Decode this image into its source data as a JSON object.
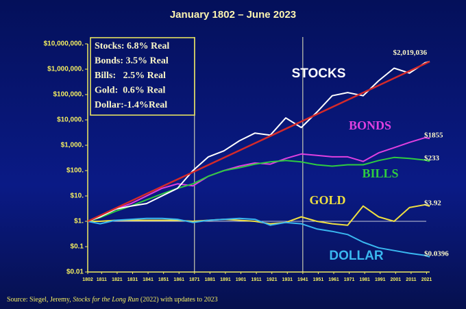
{
  "chart_data": {
    "type": "line",
    "title": "January 1802 – June 2023",
    "source": [
      "Source: Siegel, Jeremy, ",
      "Stocks for the Long Run",
      " (2022) with updates to 2023"
    ],
    "annotations": [
      "Stocks: 6.8% Real",
      "Bonds: 3.5% Real",
      "Bills:   2.5% Real",
      "Gold:  0.6% Real",
      "Dollar:-1.4%Real"
    ],
    "log_y": true,
    "x": [
      1802,
      1810,
      1820,
      1830,
      1840,
      1850,
      1860,
      1870,
      1880,
      1890,
      1900,
      1910,
      1920,
      1930,
      1940,
      1950,
      1960,
      1970,
      1980,
      1990,
      2000,
      2010,
      2020,
      2023
    ],
    "series": [
      {
        "name": "STOCKS",
        "color": "#ffffff",
        "values": [
          1,
          1.5,
          3,
          4,
          5,
          10,
          20,
          100,
          350,
          600,
          1500,
          3000,
          2500,
          12000,
          5000,
          20000,
          90000,
          120000,
          90000,
          350000,
          1100000,
          700000,
          1800000,
          2019036
        ],
        "end_label": "$2,019,036"
      },
      {
        "name": "BONDS",
        "color": "#e040e0",
        "values": [
          1,
          1.5,
          3,
          5,
          10,
          20,
          30,
          25,
          60,
          100,
          150,
          200,
          180,
          300,
          450,
          400,
          350,
          350,
          230,
          500,
          800,
          1300,
          2000,
          1855
        ],
        "end_label": "$1855"
      },
      {
        "name": "BILLS",
        "color": "#2ecc40",
        "values": [
          1,
          1.4,
          2.5,
          4,
          7,
          12,
          20,
          30,
          60,
          100,
          130,
          180,
          220,
          250,
          220,
          170,
          150,
          170,
          170,
          250,
          330,
          300,
          260,
          233
        ],
        "end_label": "$233"
      },
      {
        "name": "GOLD",
        "color": "#f0e040",
        "values": [
          1,
          1,
          1.1,
          1.1,
          1.1,
          1.1,
          1.1,
          1,
          1.1,
          1.2,
          1.1,
          1,
          0.8,
          0.9,
          1.5,
          1,
          0.8,
          0.7,
          4,
          1.5,
          1,
          3.5,
          4.5,
          3.92
        ],
        "end_label": "$3.92"
      },
      {
        "name": "DOLLAR",
        "color": "#3ab8f0",
        "values": [
          1,
          0.8,
          1.1,
          1.2,
          1.3,
          1.3,
          1.2,
          0.9,
          1.1,
          1.2,
          1.3,
          1.2,
          0.7,
          0.9,
          0.8,
          0.5,
          0.4,
          0.3,
          0.15,
          0.09,
          0.07,
          0.055,
          0.045,
          0.0396
        ],
        "end_label": "$0.0396"
      }
    ],
    "trend": {
      "x": [
        1802,
        2023
      ],
      "values": [
        1,
        2000000
      ],
      "color": "#d42a2a"
    },
    "reference_x": [
      1871,
      1941
    ],
    "reference_y": 1,
    "xlim": [
      1802,
      2023
    ],
    "xticks": [
      1802,
      1811,
      1821,
      1831,
      1841,
      1851,
      1861,
      1871,
      1881,
      1891,
      1901,
      1911,
      1921,
      1931,
      1941,
      1951,
      1961,
      1971,
      1981,
      1991,
      2001,
      2011,
      2021
    ],
    "ylim": [
      0.01,
      10000000
    ],
    "yticks": [
      {
        "value": 0.01,
        "label": "$0.01"
      },
      {
        "value": 0.1,
        "label": "$0.1"
      },
      {
        "value": 1,
        "label": "$1."
      },
      {
        "value": 10,
        "label": "$10."
      },
      {
        "value": 100,
        "label": "$100."
      },
      {
        "value": 1000,
        "label": "$1,000."
      },
      {
        "value": 10000,
        "label": "$10,000."
      },
      {
        "value": 100000,
        "label": "$100,000."
      },
      {
        "value": 1000000,
        "label": "$1,000,000."
      },
      {
        "value": 10000000,
        "label": "$10,000,000."
      }
    ]
  }
}
